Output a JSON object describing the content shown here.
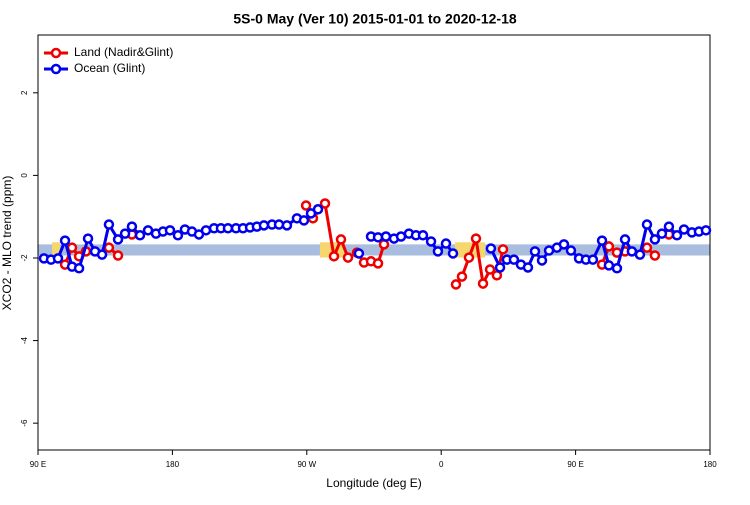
{
  "chart_data": {
    "type": "line",
    "title": "5S-0 May (Ver 10)   2015-01-01 to 2020-12-18",
    "xlabel": "Longitude (deg E)",
    "ylabel": "XCO2 - MLO trend (ppm)",
    "xlim": [
      90,
      540
    ],
    "xticks": [
      {
        "value": 90,
        "label": "90 E"
      },
      {
        "value": 180,
        "label": "180"
      },
      {
        "value": 270,
        "label": "90 W"
      },
      {
        "value": 360,
        "label": "0"
      },
      {
        "value": 450,
        "label": "90 E"
      },
      {
        "value": 540,
        "label": "180"
      }
    ],
    "ylim": [
      -6.65,
      3.4
    ],
    "yticks": [
      2,
      0,
      -2,
      -4,
      -6
    ],
    "legend": "top-left",
    "ocean_band": {
      "lower": -1.94,
      "upper": -1.67,
      "color": "#a9bedf"
    },
    "land_band": {
      "lower": -1.99,
      "upper": -1.62,
      "color": "#f5d76e",
      "spans": [
        [
          99.4,
          104.7
        ],
        [
          278.8,
          295.6
        ],
        [
          369.2,
          389.3
        ]
      ]
    },
    "series": [
      {
        "name": "Land (Nadir&Glint)",
        "color": "#ee0000",
        "x": [
          108.1,
          112.8,
          117.5,
          122.1,
          null,
          137.5,
          143.6,
          null,
          152.9,
          null,
          269.5,
          274.1,
          282.2,
          288.2,
          292.9,
          297.6,
          303.6,
          308.3,
          313.0,
          317.7,
          321.7,
          null,
          369.9,
          373.9,
          378.6,
          383.3,
          388.0,
          392.7,
          397.3,
          401.4,
          null,
          467.7,
          472.3,
          477.7,
          483.1,
          null,
          497.8,
          503.1,
          null,
          512.5
        ],
        "values": [
          -2.16,
          -1.75,
          -1.96,
          -1.84,
          null,
          -1.75,
          -1.94,
          null,
          -1.43,
          null,
          -0.73,
          -1.04,
          -0.68,
          -1.96,
          -1.55,
          -1.99,
          -1.87,
          -2.11,
          -2.08,
          -2.13,
          -1.67,
          null,
          -2.64,
          -2.45,
          -1.99,
          -1.53,
          -2.62,
          -2.28,
          -2.42,
          -1.79,
          null,
          -2.16,
          -1.72,
          -1.87,
          -1.84,
          null,
          -1.75,
          -1.94,
          null,
          -1.43
        ]
      },
      {
        "name": "Ocean (Glint)",
        "color": "#0000ee",
        "x": [
          94.0,
          98.7,
          103.4,
          108.1,
          112.8,
          117.5,
          123.5,
          128.2,
          132.9,
          137.5,
          143.6,
          148.3,
          152.9,
          158.3,
          163.7,
          169.0,
          173.7,
          178.4,
          183.7,
          188.4,
          193.1,
          197.8,
          202.5,
          207.9,
          212.5,
          217.2,
          222.6,
          227.3,
          232.0,
          236.6,
          241.3,
          246.7,
          251.4,
          256.7,
          263.4,
          268.1,
          272.8,
          277.5,
          null,
          304.9,
          null,
          313.0,
          317.7,
          323.0,
          328.4,
          333.1,
          338.4,
          343.1,
          347.8,
          353.2,
          357.8,
          363.2,
          367.9,
          null,
          393.3,
          399.4,
          404.0,
          408.7,
          413.4,
          418.1,
          422.8,
          427.5,
          432.2,
          437.5,
          442.2,
          446.9,
          452.3,
          456.9,
          461.6,
          467.7,
          472.3,
          477.7,
          483.1,
          487.7,
          493.1,
          497.8,
          503.1,
          507.8,
          512.5,
          517.9,
          522.6,
          527.9,
          532.6,
          537.3
        ],
        "values": [
          -2.01,
          -2.04,
          -2.01,
          -1.58,
          -2.21,
          -2.25,
          -1.53,
          -1.84,
          -1.92,
          -1.19,
          -1.55,
          -1.41,
          -1.24,
          -1.45,
          -1.33,
          -1.41,
          -1.36,
          -1.33,
          -1.45,
          -1.31,
          -1.36,
          -1.43,
          -1.33,
          -1.28,
          -1.28,
          -1.28,
          -1.28,
          -1.28,
          -1.26,
          -1.24,
          -1.21,
          -1.19,
          -1.19,
          -1.21,
          -1.04,
          -1.09,
          -0.92,
          -0.82,
          null,
          -1.89,
          null,
          -1.48,
          -1.5,
          -1.48,
          -1.53,
          -1.48,
          -1.41,
          -1.45,
          -1.45,
          -1.6,
          -1.84,
          -1.65,
          -1.89,
          null,
          -1.77,
          -2.23,
          -2.04,
          -2.04,
          -2.16,
          -2.23,
          -1.84,
          -2.06,
          -1.82,
          -1.75,
          -1.67,
          -1.82,
          -2.01,
          -2.04,
          -2.04,
          -1.58,
          -2.18,
          -2.25,
          -1.55,
          -1.84,
          -1.92,
          -1.19,
          -1.55,
          -1.41,
          -1.24,
          -1.45,
          -1.31,
          -1.38,
          -1.36,
          -1.33
        ]
      }
    ]
  }
}
